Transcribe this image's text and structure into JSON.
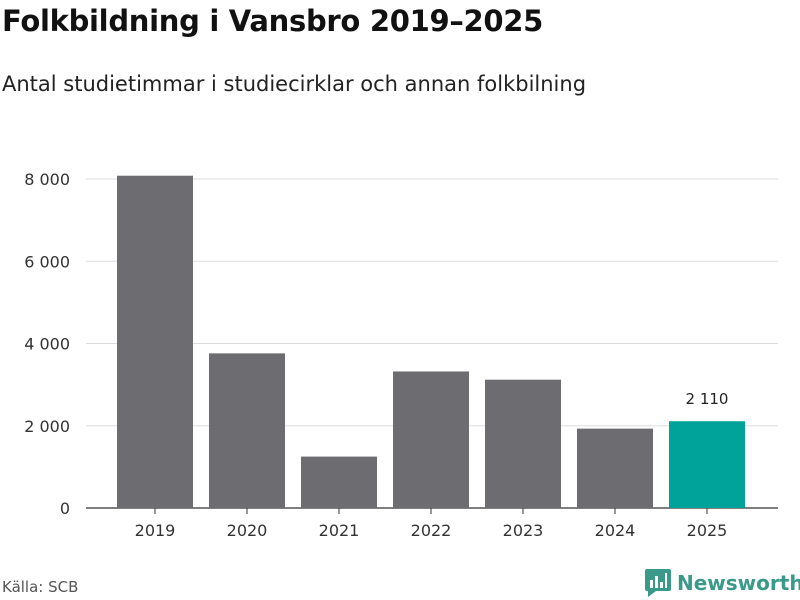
{
  "header": {
    "title": "Folkbildning i Vansbro 2019–2025",
    "subtitle": "Antal studietimmar i studiecirklar och annan folkbilning"
  },
  "footer": {
    "source": "Källa: SCB",
    "brand": "Newsworthy"
  },
  "colors": {
    "bar": "#6d6c70",
    "highlight": "#00a39a",
    "grid": "#dddddd",
    "axis": "#333333",
    "brand": "#3a9a8a"
  },
  "chart_data": {
    "type": "bar",
    "categories": [
      "2019",
      "2020",
      "2021",
      "2022",
      "2023",
      "2024",
      "2025"
    ],
    "values": [
      8080,
      3760,
      1250,
      3320,
      3120,
      1930,
      2110
    ],
    "highlight_index": 6,
    "data_labels": [
      {
        "index": 6,
        "text": "2 110"
      }
    ],
    "ylim": [
      0,
      8000
    ],
    "yticks": [
      0,
      2000,
      4000,
      6000,
      8000
    ],
    "ytick_labels": [
      "0",
      "2 000",
      "4 000",
      "6 000",
      "8 000"
    ],
    "title": "Folkbildning i Vansbro 2019–2025",
    "subtitle": "Antal studietimmar i studiecirklar och annan folkbilning",
    "xlabel": "",
    "ylabel": "",
    "grid": true,
    "legend": false
  }
}
